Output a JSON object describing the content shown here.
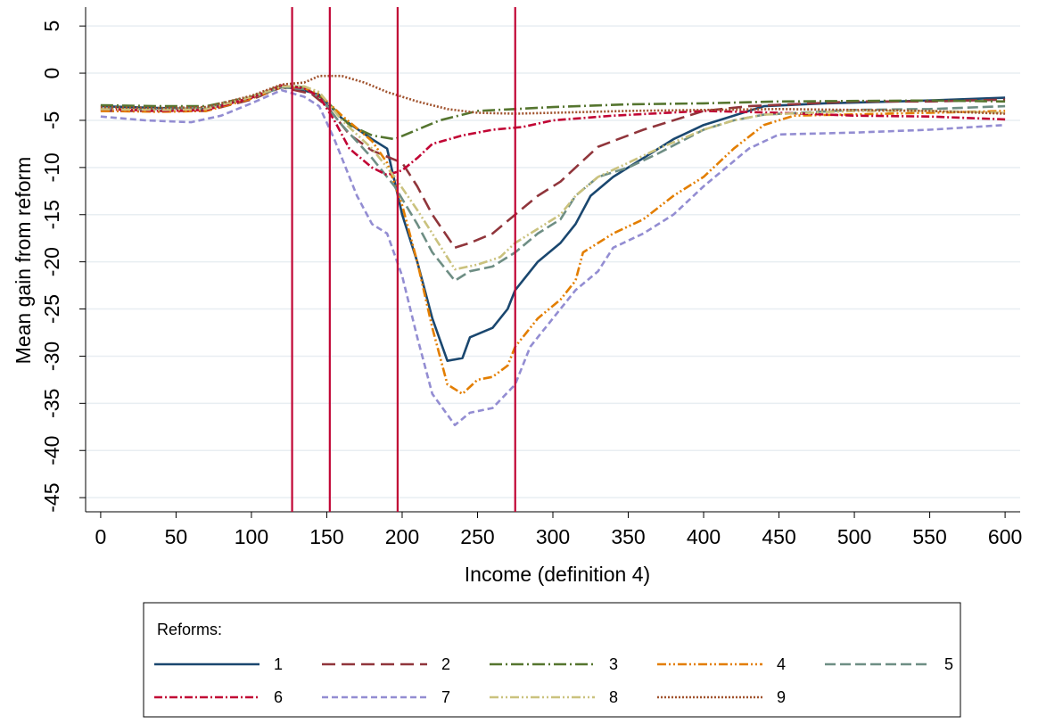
{
  "chart_data": {
    "type": "line",
    "title": "",
    "xlabel": "Income (definition 4)",
    "ylabel": "Mean gain from reform",
    "xlim": [
      -10,
      610
    ],
    "ylim": [
      -46.5,
      7
    ],
    "xticks": [
      0,
      50,
      100,
      150,
      200,
      250,
      300,
      350,
      400,
      450,
      500,
      550,
      600
    ],
    "yticks": [
      5,
      0,
      -5,
      -10,
      -15,
      -20,
      -25,
      -30,
      -35,
      -40,
      -45
    ],
    "grid": "horizontal",
    "reference_lines_x": [
      127,
      152,
      197,
      275
    ],
    "reference_line_color": "#c10534",
    "legend": {
      "title": "Reforms:",
      "placement": "bottom"
    },
    "series": [
      {
        "name": "1",
        "color": "#1a476f",
        "dash": "solid",
        "points": [
          [
            0,
            -3.5
          ],
          [
            40,
            -3.7
          ],
          [
            70,
            -3.8
          ],
          [
            100,
            -2.6
          ],
          [
            120,
            -1.5
          ],
          [
            130,
            -1.6
          ],
          [
            145,
            -2.3
          ],
          [
            160,
            -4.8
          ],
          [
            180,
            -7.0
          ],
          [
            190,
            -8.0
          ],
          [
            200,
            -15
          ],
          [
            210,
            -20
          ],
          [
            220,
            -26
          ],
          [
            230,
            -30.5
          ],
          [
            240,
            -30.2
          ],
          [
            245,
            -28
          ],
          [
            260,
            -27
          ],
          [
            270,
            -25
          ],
          [
            275,
            -23
          ],
          [
            290,
            -20
          ],
          [
            305,
            -18
          ],
          [
            315,
            -16
          ],
          [
            325,
            -13
          ],
          [
            340,
            -11
          ],
          [
            360,
            -9
          ],
          [
            380,
            -7
          ],
          [
            400,
            -5.5
          ],
          [
            420,
            -4.5
          ],
          [
            440,
            -3.5
          ],
          [
            480,
            -3.2
          ],
          [
            550,
            -2.9
          ],
          [
            600,
            -2.6
          ]
        ]
      },
      {
        "name": "2",
        "color": "#90353b",
        "dash": "15,7",
        "points": [
          [
            0,
            -4.0
          ],
          [
            40,
            -4.0
          ],
          [
            70,
            -4.0
          ],
          [
            100,
            -2.8
          ],
          [
            120,
            -1.5
          ],
          [
            140,
            -2.2
          ],
          [
            150,
            -3.5
          ],
          [
            165,
            -6.5
          ],
          [
            180,
            -8.2
          ],
          [
            200,
            -9.5
          ],
          [
            210,
            -12
          ],
          [
            220,
            -15
          ],
          [
            235,
            -18.5
          ],
          [
            245,
            -18
          ],
          [
            260,
            -17
          ],
          [
            275,
            -15
          ],
          [
            290,
            -13
          ],
          [
            305,
            -11.5
          ],
          [
            315,
            -10
          ],
          [
            330,
            -7.8
          ],
          [
            360,
            -6
          ],
          [
            380,
            -5
          ],
          [
            400,
            -4
          ],
          [
            430,
            -3.5
          ],
          [
            500,
            -3.0
          ],
          [
            550,
            -3.0
          ],
          [
            600,
            -2.8
          ]
        ]
      },
      {
        "name": "3",
        "color": "#55752f",
        "dash": "14,4,2,4",
        "points": [
          [
            0,
            -3.4
          ],
          [
            40,
            -3.5
          ],
          [
            70,
            -3.5
          ],
          [
            100,
            -2.5
          ],
          [
            120,
            -1.3
          ],
          [
            135,
            -1.5
          ],
          [
            150,
            -3.0
          ],
          [
            165,
            -5.5
          ],
          [
            180,
            -6.6
          ],
          [
            195,
            -7.0
          ],
          [
            210,
            -6.0
          ],
          [
            225,
            -5.0
          ],
          [
            250,
            -4.0
          ],
          [
            275,
            -3.8
          ],
          [
            300,
            -3.6
          ],
          [
            350,
            -3.3
          ],
          [
            400,
            -3.2
          ],
          [
            450,
            -3.0
          ],
          [
            550,
            -2.9
          ],
          [
            600,
            -3.0
          ]
        ]
      },
      {
        "name": "4",
        "color": "#e37e00",
        "dash": "10,3,2,3,2,3",
        "points": [
          [
            0,
            -4.0
          ],
          [
            40,
            -4.1
          ],
          [
            70,
            -4.0
          ],
          [
            100,
            -2.7
          ],
          [
            120,
            -1.5
          ],
          [
            135,
            -1.6
          ],
          [
            145,
            -2.2
          ],
          [
            160,
            -4.5
          ],
          [
            180,
            -7.2
          ],
          [
            190,
            -9.5
          ],
          [
            200,
            -14
          ],
          [
            210,
            -20
          ],
          [
            220,
            -27
          ],
          [
            230,
            -33
          ],
          [
            240,
            -34
          ],
          [
            250,
            -32.5
          ],
          [
            260,
            -32.2
          ],
          [
            270,
            -31
          ],
          [
            275,
            -29
          ],
          [
            290,
            -26
          ],
          [
            305,
            -24
          ],
          [
            315,
            -22
          ],
          [
            320,
            -19
          ],
          [
            340,
            -17
          ],
          [
            360,
            -15.5
          ],
          [
            380,
            -13
          ],
          [
            400,
            -11
          ],
          [
            420,
            -8
          ],
          [
            440,
            -5.5
          ],
          [
            460,
            -4.5
          ],
          [
            550,
            -4.2
          ],
          [
            600,
            -4.0
          ]
        ]
      },
      {
        "name": "5",
        "color": "#6e8e84",
        "dash": "12,5",
        "points": [
          [
            0,
            -3.8
          ],
          [
            40,
            -3.8
          ],
          [
            70,
            -3.7
          ],
          [
            100,
            -2.6
          ],
          [
            120,
            -1.5
          ],
          [
            135,
            -1.7
          ],
          [
            145,
            -2.5
          ],
          [
            160,
            -5.5
          ],
          [
            180,
            -9.0
          ],
          [
            195,
            -12.0
          ],
          [
            210,
            -16
          ],
          [
            220,
            -19
          ],
          [
            235,
            -22
          ],
          [
            245,
            -21
          ],
          [
            260,
            -20.5
          ],
          [
            275,
            -19.0
          ],
          [
            290,
            -17
          ],
          [
            305,
            -15.5
          ],
          [
            315,
            -13
          ],
          [
            330,
            -11
          ],
          [
            350,
            -10
          ],
          [
            370,
            -8.5
          ],
          [
            400,
            -6
          ],
          [
            420,
            -5
          ],
          [
            440,
            -4.4
          ],
          [
            500,
            -3.9
          ],
          [
            550,
            -3.8
          ],
          [
            600,
            -3.5
          ]
        ]
      },
      {
        "name": "6",
        "color": "#c10534",
        "dash": "9,3,2,3",
        "points": [
          [
            0,
            -3.8
          ],
          [
            40,
            -4.0
          ],
          [
            70,
            -3.9
          ],
          [
            100,
            -2.6
          ],
          [
            120,
            -1.3
          ],
          [
            135,
            -1.6
          ],
          [
            145,
            -2.5
          ],
          [
            155,
            -5.0
          ],
          [
            165,
            -8.0
          ],
          [
            180,
            -10.0
          ],
          [
            190,
            -10.8
          ],
          [
            200,
            -10.3
          ],
          [
            210,
            -9.0
          ],
          [
            220,
            -7.5
          ],
          [
            240,
            -6.6
          ],
          [
            260,
            -6.0
          ],
          [
            280,
            -5.7
          ],
          [
            300,
            -5.0
          ],
          [
            340,
            -4.5
          ],
          [
            400,
            -4.0
          ],
          [
            450,
            -4.2
          ],
          [
            500,
            -4.5
          ],
          [
            550,
            -4.6
          ],
          [
            600,
            -4.9
          ]
        ]
      },
      {
        "name": "7",
        "color": "#938dd2",
        "dash": "7,4",
        "points": [
          [
            0,
            -4.6
          ],
          [
            30,
            -5.0
          ],
          [
            60,
            -5.2
          ],
          [
            80,
            -4.5
          ],
          [
            100,
            -3.2
          ],
          [
            120,
            -1.8
          ],
          [
            135,
            -2.5
          ],
          [
            145,
            -3.5
          ],
          [
            155,
            -7.0
          ],
          [
            170,
            -13.0
          ],
          [
            180,
            -16.0
          ],
          [
            190,
            -17.0
          ],
          [
            200,
            -21.5
          ],
          [
            210,
            -28
          ],
          [
            220,
            -34
          ],
          [
            235,
            -37.3
          ],
          [
            245,
            -36
          ],
          [
            260,
            -35.5
          ],
          [
            275,
            -33.0
          ],
          [
            285,
            -29
          ],
          [
            300,
            -26
          ],
          [
            315,
            -23
          ],
          [
            330,
            -21
          ],
          [
            340,
            -18.5
          ],
          [
            360,
            -17
          ],
          [
            380,
            -15
          ],
          [
            400,
            -12
          ],
          [
            430,
            -8
          ],
          [
            450,
            -6.5
          ],
          [
            500,
            -6.3
          ],
          [
            550,
            -6.0
          ],
          [
            600,
            -5.5
          ]
        ]
      },
      {
        "name": "8",
        "color": "#cac27e",
        "dash": "10,3,2,3,2,3",
        "points": [
          [
            0,
            -3.8
          ],
          [
            40,
            -3.9
          ],
          [
            70,
            -3.8
          ],
          [
            100,
            -2.5
          ],
          [
            120,
            -1.4
          ],
          [
            135,
            -1.4
          ],
          [
            145,
            -2.0
          ],
          [
            160,
            -5.0
          ],
          [
            180,
            -8.0
          ],
          [
            195,
            -11.0
          ],
          [
            210,
            -14.5
          ],
          [
            220,
            -17
          ],
          [
            235,
            -20.8
          ],
          [
            250,
            -20.3
          ],
          [
            265,
            -19.5
          ],
          [
            275,
            -18.0
          ],
          [
            290,
            -16.5
          ],
          [
            305,
            -15.0
          ],
          [
            315,
            -13
          ],
          [
            330,
            -11
          ],
          [
            350,
            -9.5
          ],
          [
            370,
            -8
          ],
          [
            400,
            -6
          ],
          [
            420,
            -5
          ],
          [
            440,
            -4.4
          ],
          [
            500,
            -4.0
          ],
          [
            550,
            -4.0
          ],
          [
            600,
            -4.2
          ]
        ]
      },
      {
        "name": "9",
        "color": "#a0522d",
        "dash": "2,2",
        "points": [
          [
            0,
            -3.6
          ],
          [
            40,
            -3.7
          ],
          [
            70,
            -3.6
          ],
          [
            100,
            -2.4
          ],
          [
            120,
            -1.2
          ],
          [
            135,
            -1.0
          ],
          [
            145,
            -0.3
          ],
          [
            160,
            -0.3
          ],
          [
            175,
            -1.0
          ],
          [
            190,
            -2.0
          ],
          [
            210,
            -3.0
          ],
          [
            230,
            -3.8
          ],
          [
            250,
            -4.2
          ],
          [
            275,
            -4.3
          ],
          [
            300,
            -4.2
          ],
          [
            350,
            -4.0
          ],
          [
            400,
            -3.9
          ],
          [
            450,
            -3.8
          ],
          [
            500,
            -3.9
          ],
          [
            550,
            -4.0
          ],
          [
            600,
            -4.3
          ]
        ]
      }
    ]
  }
}
